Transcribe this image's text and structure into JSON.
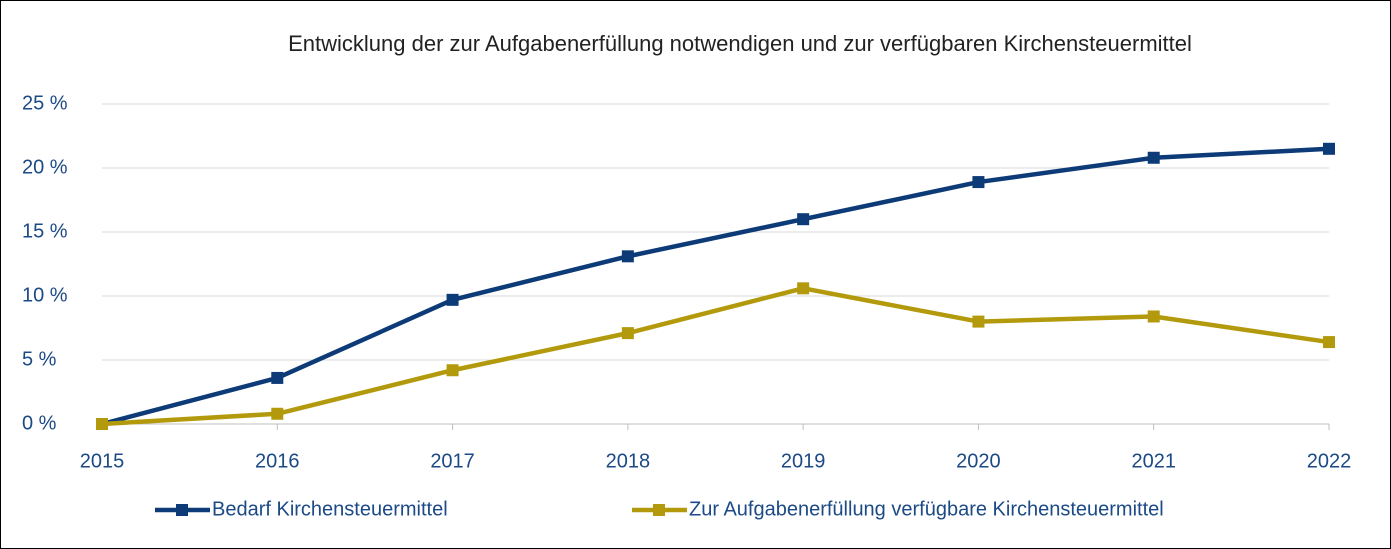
{
  "chart_data": {
    "type": "line",
    "title": "Entwicklung der zur Aufgabenerfüllung notwendigen und zur verfügbaren Kirchensteuermittel",
    "x": [
      2015,
      2016,
      2017,
      2018,
      2019,
      2020,
      2021,
      2022
    ],
    "xlim": [
      2015,
      2022
    ],
    "xticks": [
      2015,
      2016,
      2017,
      2018,
      2019,
      2020,
      2021,
      2022
    ],
    "ylim": [
      0,
      25
    ],
    "yticks": [
      {
        "value": 0,
        "label": "0 %"
      },
      {
        "value": 5,
        "label": "5 %"
      },
      {
        "value": 10,
        "label": "10 %"
      },
      {
        "value": 15,
        "label": "15 %"
      },
      {
        "value": 20,
        "label": "20 %"
      },
      {
        "value": 25,
        "label": "25 %"
      }
    ],
    "grid": true,
    "legend": "bottom",
    "series": [
      {
        "name": "Bedarf Kirchensteuermittel",
        "color": "#0d3b78",
        "values": [
          0,
          3.6,
          9.7,
          13.1,
          16.0,
          18.9,
          20.8,
          21.5
        ]
      },
      {
        "name": "Zur Aufgabenerfüllung verfügbare Kirchensteuermittel",
        "color": "#b39a0c",
        "values": [
          0,
          0.8,
          4.2,
          7.1,
          10.6,
          8.0,
          8.4,
          6.4
        ]
      }
    ]
  }
}
